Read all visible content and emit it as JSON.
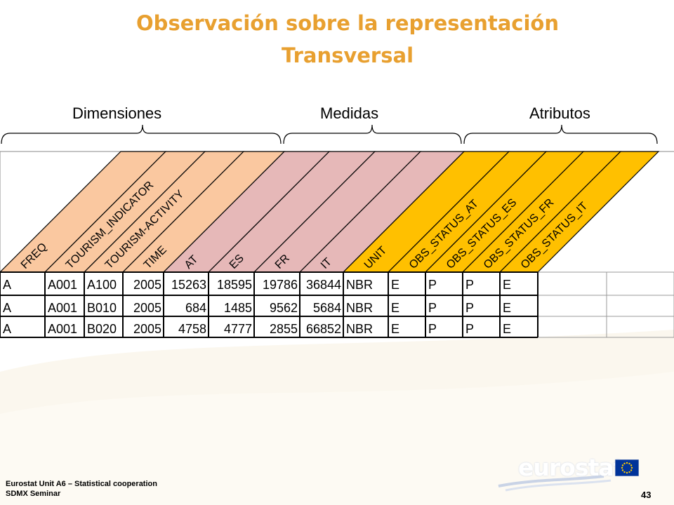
{
  "title_line1": "Observación sobre la representación",
  "title_line2": "Transversal",
  "groups": [
    "Dimensiones",
    "Medidas",
    "Atributos"
  ],
  "columns": [
    {
      "name": "FREQ",
      "group": "dimension"
    },
    {
      "name": "TOURISM_INDICATOR",
      "group": "dimension"
    },
    {
      "name": "TOURISM-ACTIVITY",
      "group": "dimension"
    },
    {
      "name": "TIME",
      "group": "dimension"
    },
    {
      "name": "AT",
      "group": "measure"
    },
    {
      "name": "ES",
      "group": "measure"
    },
    {
      "name": "FR",
      "group": "measure"
    },
    {
      "name": "IT",
      "group": "measure"
    },
    {
      "name": "UNIT",
      "group": "attribute"
    },
    {
      "name": "OBS_STATUS_AT",
      "group": "attribute"
    },
    {
      "name": "OBS_STATUS_ES",
      "group": "attribute"
    },
    {
      "name": "OBS_STATUS_FR",
      "group": "attribute"
    },
    {
      "name": "OBS_STATUS_IT",
      "group": "attribute"
    }
  ],
  "rows": [
    [
      "A",
      "A001",
      "A100",
      "2005",
      "15263",
      "18595",
      "19786",
      "36844",
      "NBR",
      "E",
      "P",
      "P",
      "E"
    ],
    [
      "A",
      "A001",
      "B010",
      "2005",
      "684",
      "1485",
      "9562",
      "5684",
      "NBR",
      "E",
      "P",
      "P",
      "E"
    ],
    [
      "A",
      "A001",
      "B020",
      "2005",
      "4758",
      "4777",
      "2855",
      "66852",
      "NBR",
      "E",
      "P",
      "P",
      "E"
    ]
  ],
  "colors": {
    "title": "#E8A030",
    "dimension": "#FAC8A0",
    "measure": "#E6B8B8",
    "attribute": "#FFC000"
  },
  "footer": {
    "line1": "Eurostat Unit  A6 – Statistical cooperation",
    "line2": "SDMX Seminar",
    "page": "43"
  },
  "logo_text": "eurostat",
  "icons": [
    "eu-flag-icon"
  ]
}
